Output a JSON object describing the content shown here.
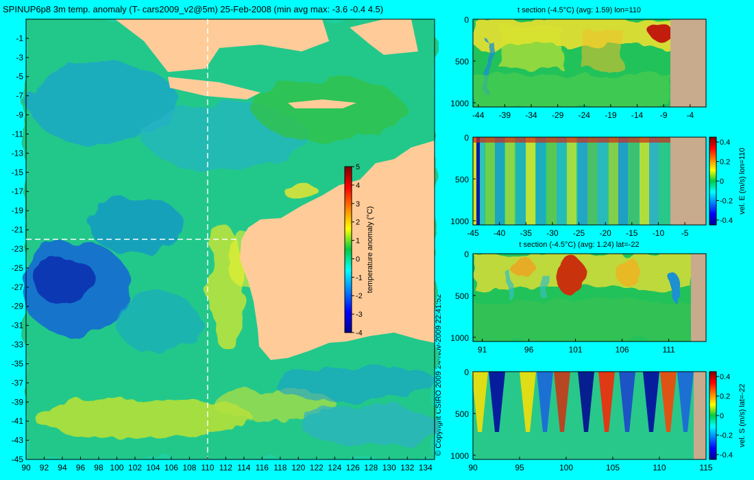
{
  "title": "SPINUP6p8 3m temp. anomaly (T- cars2009_v2@5m) 25-Feb-2008 (min avg max: -3.6 -0.4 4.5)",
  "copyright": "© Copyright CSIRO 2009  24-Nov-2009 22:41:52",
  "colors": {
    "background": "#00ffff",
    "land": "#ffcc99",
    "seafloor": "#c8aa8c",
    "crosshair": "#ffffff"
  },
  "chart_data": [
    {
      "type": "heatmap",
      "name": "main_map",
      "title": "SPINUP6p8 3m temp. anomaly (T- cars2009_v2@5m) 25-Feb-2008 (min avg max: -3.6 -0.4 4.5)",
      "x_ticks": [
        "90",
        "92",
        "94",
        "96",
        "98",
        "100",
        "102",
        "104",
        "106",
        "108",
        "110",
        "112",
        "114",
        "116",
        "118",
        "120",
        "122",
        "124",
        "126",
        "128",
        "130",
        "132",
        "134"
      ],
      "y_ticks": [
        "-1",
        "-3",
        "-5",
        "-7",
        "-9",
        "-11",
        "-13",
        "-15",
        "-17",
        "-19",
        "-21",
        "-23",
        "-25",
        "-27",
        "-29",
        "-31",
        "-33",
        "-35",
        "-37",
        "-39",
        "-41",
        "-43",
        "-45"
      ],
      "xlim": [
        90,
        135
      ],
      "ylim": [
        -45,
        1
      ],
      "crosshair": {
        "lon": 110,
        "lat": -22
      },
      "colorbar": {
        "label": "temperature anomaly (°C)",
        "ticks": [
          "5",
          "4",
          "3",
          "2",
          "1",
          "0",
          "-1",
          "-2",
          "-3",
          "-4"
        ],
        "range": [
          -4,
          5
        ]
      },
      "stats": {
        "min": -3.6,
        "avg": -0.4,
        "max": 4.5
      }
    },
    {
      "type": "heatmap",
      "name": "t_section_lon",
      "title": "t section (-4.5°C) (avg: 1.59) lon=110",
      "x_ticks": [
        "-44",
        "-39",
        "-34",
        "-29",
        "-24",
        "-19",
        "-14",
        "-9",
        "-4"
      ],
      "y_ticks": [
        "0",
        "500",
        "1000"
      ],
      "xlim": [
        -45,
        -1
      ],
      "ylim": [
        1050,
        0
      ]
    },
    {
      "type": "heatmap",
      "name": "vel_e_section",
      "title": "",
      "x_ticks": [
        "-45",
        "-40",
        "-35",
        "-30",
        "-25",
        "-20",
        "-15",
        "-10",
        "-5"
      ],
      "y_ticks": [
        "0",
        "500",
        "1000"
      ],
      "xlim": [
        -45,
        -1
      ],
      "ylim": [
        1050,
        0
      ],
      "colorbar": {
        "label": "vel. E (m/s) lon=110",
        "ticks": [
          "0.4",
          "0.2",
          "0",
          "-0.2",
          "-0.4"
        ],
        "range": [
          -0.45,
          0.45
        ]
      }
    },
    {
      "type": "heatmap",
      "name": "t_section_lat",
      "title": "t section (-4.5°C) (avg: 1.24) lat=-22",
      "x_ticks": [
        "91",
        "96",
        "101",
        "106",
        "111"
      ],
      "y_ticks": [
        "0",
        "500",
        "1000"
      ],
      "xlim": [
        90,
        115
      ],
      "ylim": [
        1050,
        0
      ]
    },
    {
      "type": "heatmap",
      "name": "vel_s_section",
      "title": "",
      "x_ticks": [
        "90",
        "95",
        "100",
        "105",
        "110",
        "115"
      ],
      "y_ticks": [
        "0",
        "500",
        "1000"
      ],
      "xlim": [
        90,
        115
      ],
      "ylim": [
        1050,
        0
      ],
      "colorbar": {
        "label": "vel. S (m/s) lat=-22",
        "ticks": [
          "0.4",
          "0.2",
          "0",
          "-0.2",
          "-0.4"
        ],
        "range": [
          -0.45,
          0.45
        ]
      }
    }
  ]
}
